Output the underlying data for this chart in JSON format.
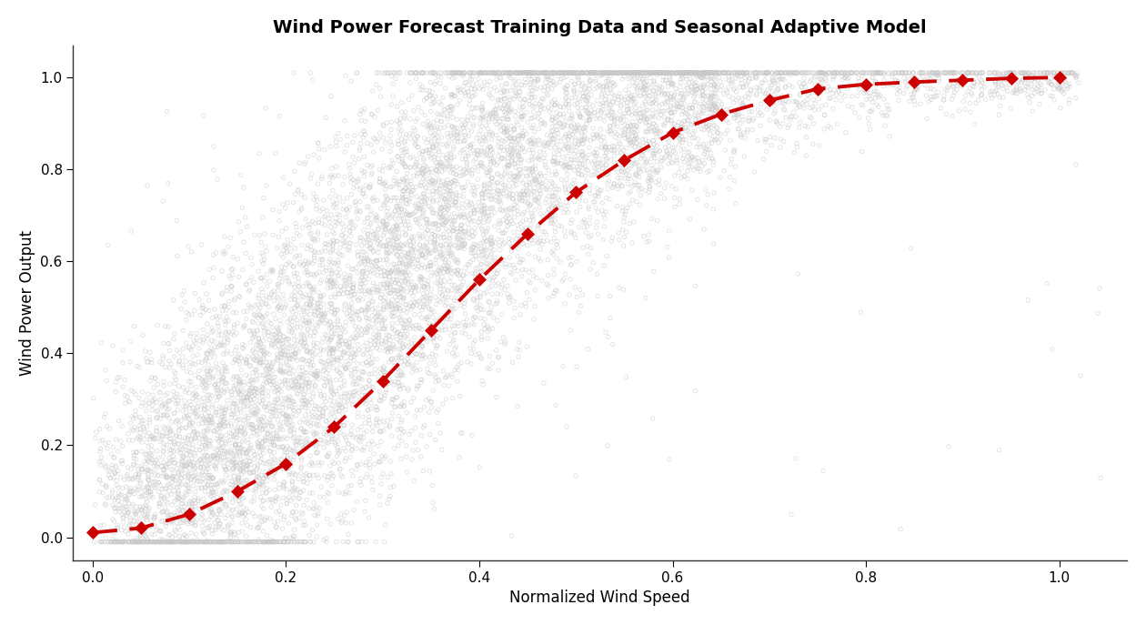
{
  "title": "Wind Power Forecast Training Data and Seasonal Adaptive Model",
  "xlabel": "Normalized Wind Speed",
  "ylabel": "Wind Power Output",
  "xlim": [
    -0.02,
    1.07
  ],
  "ylim": [
    -0.05,
    1.07
  ],
  "xticks": [
    0.0,
    0.2,
    0.4,
    0.6,
    0.8,
    1.0
  ],
  "yticks": [
    0.0,
    0.2,
    0.4,
    0.6,
    0.8,
    1.0
  ],
  "scatter_color": "#c8c8c8",
  "scatter_size": 10,
  "scatter_alpha": 0.55,
  "scatter_linewidth": 0.6,
  "curve_color": "#cc0000",
  "curve_lw": 2.8,
  "marker_size": 7,
  "n_scatter": 10000,
  "random_seed": 99,
  "loess_x": [
    0.0,
    0.05,
    0.1,
    0.15,
    0.2,
    0.25,
    0.3,
    0.35,
    0.4,
    0.45,
    0.5,
    0.55,
    0.6,
    0.65,
    0.7,
    0.75,
    0.8,
    0.85,
    0.9,
    0.95,
    1.0
  ],
  "loess_y": [
    0.01,
    0.02,
    0.05,
    0.1,
    0.16,
    0.24,
    0.34,
    0.45,
    0.56,
    0.66,
    0.75,
    0.82,
    0.88,
    0.92,
    0.95,
    0.975,
    0.985,
    0.99,
    0.994,
    0.998,
    1.0
  ],
  "title_fontsize": 14,
  "label_fontsize": 12,
  "tick_fontsize": 11,
  "bg_color": "#ffffff"
}
